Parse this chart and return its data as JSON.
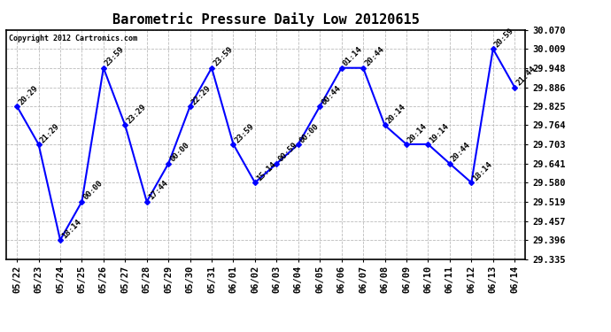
{
  "title": "Barometric Pressure Daily Low 20120615",
  "copyright": "Copyright 2012 Cartronics.com",
  "x_labels": [
    "05/22",
    "05/23",
    "05/24",
    "05/25",
    "05/26",
    "05/27",
    "05/28",
    "05/29",
    "05/30",
    "05/31",
    "06/01",
    "06/02",
    "06/03",
    "06/04",
    "06/05",
    "06/06",
    "06/07",
    "06/08",
    "06/09",
    "06/10",
    "06/11",
    "06/12",
    "06/13",
    "06/14"
  ],
  "y_values": [
    29.825,
    29.703,
    29.396,
    29.519,
    29.948,
    29.764,
    29.519,
    29.641,
    29.825,
    29.948,
    29.703,
    29.58,
    29.641,
    29.703,
    29.825,
    29.948,
    29.948,
    29.764,
    29.703,
    29.703,
    29.641,
    29.58,
    30.009,
    29.886
  ],
  "time_labels": [
    "20:29",
    "21:29",
    "18:14",
    "00:00",
    "23:59",
    "23:29",
    "17:44",
    "00:00",
    "22:29",
    "23:59",
    "23:59",
    "15:14",
    "00:59",
    "00:00",
    "00:44",
    "01:14",
    "20:44",
    "20:14",
    "20:14",
    "19:14",
    "20:44",
    "18:14",
    "20:59",
    "21:44"
  ],
  "y_ticks": [
    29.335,
    29.396,
    29.457,
    29.519,
    29.58,
    29.641,
    29.703,
    29.764,
    29.825,
    29.886,
    29.948,
    30.009,
    30.07
  ],
  "y_min": 29.335,
  "y_max": 30.07,
  "line_color": "blue",
  "marker_color": "blue",
  "background_color": "white",
  "grid_color": "#bbbbbb",
  "title_fontsize": 11,
  "label_fontsize": 7.5,
  "annotation_fontsize": 6.5
}
